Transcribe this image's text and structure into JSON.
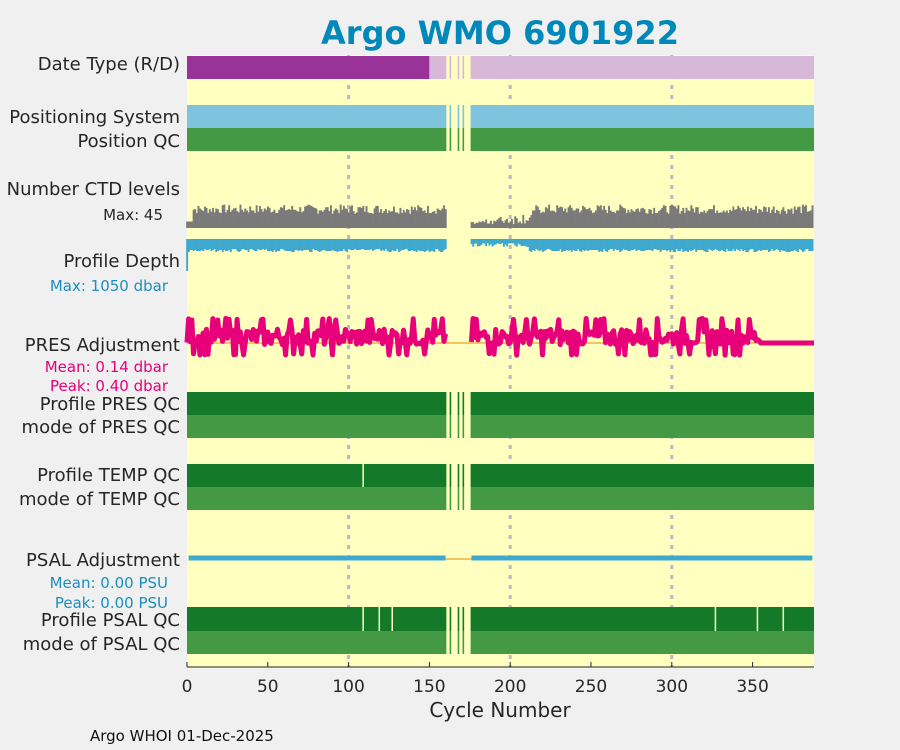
{
  "chart_data": {
    "type": "timeline",
    "title": "Argo WMO 6901922",
    "xlabel": "Cycle Number",
    "xlim": [
      0,
      388
    ],
    "xticks": [
      0,
      50,
      100,
      150,
      200,
      250,
      300,
      350
    ],
    "grid_lines_x": [
      100,
      200,
      300
    ],
    "footer": "Argo WHOI 01-Dec-2025",
    "gaps": [
      [
        160.5,
        162.5
      ],
      [
        163.5,
        167.5
      ],
      [
        168.5,
        170.5
      ],
      [
        171.5,
        175.5
      ]
    ],
    "colors": {
      "background": "#ffffc0",
      "date_type_realtime": "#993399",
      "date_type_delayed": "#d8b8d8",
      "positioning": "#7fc4df",
      "qc_good_dark": "#147a2a",
      "qc_good_light": "#449944",
      "ctd_levels": "#7a7a7a",
      "profile_depth": "#3fa8cf",
      "pres_adjustment": "#e8007a",
      "adjustment_zero": "#f0b040",
      "psal_adjustment": "#3fa8cf",
      "title": "#0088bb",
      "qc_flag": "#ffffc0"
    },
    "rows": {
      "date_type": {
        "label": "Date Type (R/D)",
        "realtime_until_cycle": 150
      },
      "positioning_system": {
        "label": "Positioning System"
      },
      "position_qc": {
        "label": "Position QC"
      },
      "ctd_levels": {
        "label": "Number CTD levels",
        "max_label": "Max: 45",
        "max": 45,
        "typical": 30
      },
      "profile_depth": {
        "label": "Profile Depth",
        "max_label": "Max: 1050 dbar",
        "max": 1050
      },
      "pres_adjustment": {
        "label": "PRES Adjustment",
        "mean_label": "Mean: 0.14 dbar",
        "peak_label": "Peak: 0.40 dbar",
        "mean": 0.14,
        "peak": 0.4,
        "steady_after_cycle": 355
      },
      "profile_pres_qc": {
        "label": "Profile PRES QC",
        "flags": []
      },
      "mode_pres_qc": {
        "label": "mode of PRES QC"
      },
      "profile_temp_qc": {
        "label": "Profile TEMP QC",
        "flags": [
          109
        ]
      },
      "mode_temp_qc": {
        "label": "mode of TEMP QC"
      },
      "psal_adjustment": {
        "label": "PSAL Adjustment",
        "mean_label": "Mean: 0.00 PSU",
        "peak_label": "Peak: 0.00 PSU",
        "mean": 0.0,
        "peak": 0.0
      },
      "profile_psal_qc": {
        "label": "Profile PSAL QC",
        "flags": [
          109,
          119,
          127,
          327,
          353,
          369
        ]
      },
      "mode_psal_qc": {
        "label": "mode of PSAL QC"
      }
    }
  }
}
